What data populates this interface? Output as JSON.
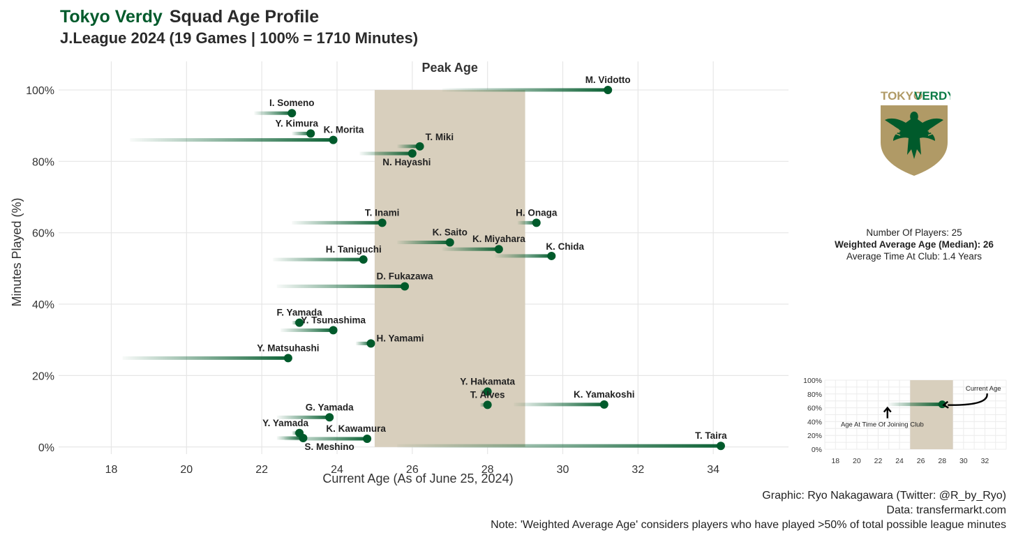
{
  "title": {
    "team": "Tokyo Verdy",
    "subtitle_main": "Squad Age Profile",
    "line2": "J.League 2024 (19 Games | 100% = 1710 Minutes)"
  },
  "colors": {
    "accent": "#005a2b",
    "peak_band": "#d8cfbd",
    "grid": "#e6e6e6",
    "logo_gold": "#b09a66"
  },
  "chart_data": {
    "type": "scatter",
    "title": "Peak Age",
    "xlabel": "Current Age (As of June 25, 2024)",
    "ylabel": "Minutes Played (%)",
    "xlim": [
      16.6,
      36
    ],
    "ylim": [
      -2,
      108
    ],
    "x_ticks": [
      18,
      20,
      22,
      24,
      26,
      28,
      30,
      32,
      34
    ],
    "y_ticks": [
      0,
      20,
      40,
      60,
      80,
      100
    ],
    "y_tick_labels": [
      "0%",
      "20%",
      "40%",
      "60%",
      "80%",
      "100%"
    ],
    "peak_band": [
      25,
      29
    ],
    "peak_label": "Peak Age",
    "players": [
      {
        "name": "M. Vidotto",
        "age": 31.2,
        "joined": 26.8,
        "pct": 100.0
      },
      {
        "name": "I. Someno",
        "age": 22.8,
        "joined": 21.8,
        "pct": 93.5
      },
      {
        "name": "Y. Kimura",
        "age": 23.3,
        "joined": 22.8,
        "pct": 87.8
      },
      {
        "name": "K. Morita",
        "age": 23.9,
        "joined": 18.5,
        "pct": 86.0
      },
      {
        "name": "T. Miki",
        "age": 26.2,
        "joined": 25.6,
        "pct": 84.2
      },
      {
        "name": "N. Hayashi",
        "age": 26.0,
        "joined": 24.6,
        "pct": 82.2
      },
      {
        "name": "T. Inami",
        "age": 25.2,
        "joined": 22.8,
        "pct": 62.8
      },
      {
        "name": "H. Onaga",
        "age": 29.3,
        "joined": 28.8,
        "pct": 62.8
      },
      {
        "name": "K. Saito",
        "age": 27.0,
        "joined": 25.6,
        "pct": 57.3
      },
      {
        "name": "K. Miyahara",
        "age": 28.3,
        "joined": 26.8,
        "pct": 55.4
      },
      {
        "name": "K. Chida",
        "age": 29.7,
        "joined": 28.2,
        "pct": 53.5
      },
      {
        "name": "H. Taniguchi",
        "age": 24.7,
        "joined": 22.3,
        "pct": 52.5
      },
      {
        "name": "D. Fukazawa",
        "age": 25.8,
        "joined": 22.4,
        "pct": 45.0
      },
      {
        "name": "F. Yamada",
        "age": 23.0,
        "joined": 22.8,
        "pct": 34.8
      },
      {
        "name": "Y. Tsunashima",
        "age": 23.9,
        "joined": 22.5,
        "pct": 32.7
      },
      {
        "name": "H. Yamami",
        "age": 24.9,
        "joined": 24.5,
        "pct": 29.0
      },
      {
        "name": "Y. Matsuhashi",
        "age": 22.7,
        "joined": 18.3,
        "pct": 24.9
      },
      {
        "name": "Y. Hakamata",
        "age": 28.0,
        "joined": 27.8,
        "pct": 15.5
      },
      {
        "name": "T. Alves",
        "age": 28.0,
        "joined": 27.8,
        "pct": 11.8
      },
      {
        "name": "K. Yamakoshi",
        "age": 31.1,
        "joined": 28.7,
        "pct": 11.9
      },
      {
        "name": "G. Yamada",
        "age": 23.8,
        "joined": 22.4,
        "pct": 8.3
      },
      {
        "name": "Y. Yamada",
        "age": 23.0,
        "joined": 22.8,
        "pct": 3.9
      },
      {
        "name": "K. Kawamura",
        "age": 24.8,
        "joined": 22.6,
        "pct": 2.3
      },
      {
        "name": "S. Meshino",
        "age": 23.1,
        "joined": 22.4,
        "pct": 2.5
      },
      {
        "name": "T. Taira",
        "age": 34.2,
        "joined": 25.6,
        "pct": 0.3
      }
    ]
  },
  "legend_chart": {
    "xlim": [
      17,
      34
    ],
    "ylim": [
      0,
      100
    ],
    "x_ticks": [
      18,
      20,
      22,
      24,
      26,
      28,
      30,
      32
    ],
    "y_ticks": [
      0,
      20,
      40,
      60,
      80,
      100
    ],
    "y_tick_labels": [
      "0%",
      "20%",
      "40%",
      "60%",
      "80%",
      "100%"
    ],
    "peak_band": [
      25,
      29
    ],
    "example": {
      "age": 28,
      "joined": 23,
      "pct": 65
    },
    "current_age_label": "Current Age",
    "joining_label": "Age At Time Of Joining Club"
  },
  "stats": {
    "players": "Number Of Players: 25",
    "weighted": "Weighted Average Age (Median): 26",
    "time_at_club": "Average Time At Club: 1.4 Years"
  },
  "logo": {
    "wordmark_1": "TOKYO",
    "wordmark_2": "VERDY"
  },
  "footer": {
    "graphic": "Graphic: Ryo Nakagawara (Twitter: @R_by_Ryo)",
    "data": "Data: transfermarkt.com",
    "note": "Note: 'Weighted Average Age' considers players who have played >50% of total possible league minutes"
  }
}
